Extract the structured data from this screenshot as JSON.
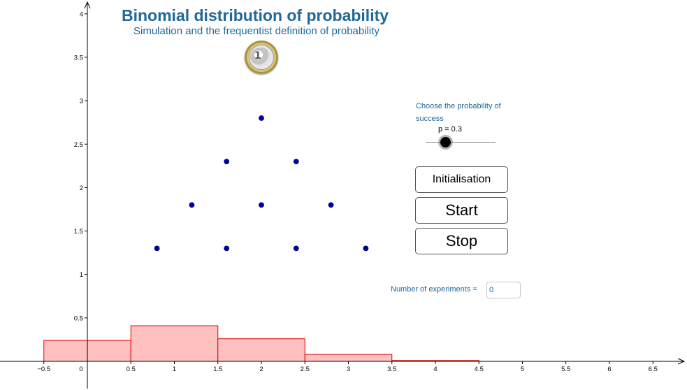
{
  "title": "Binomial distribution of probability",
  "subtitle": "Simulation and the frequentist definition of probability",
  "coin": {
    "icon": "euro-coin-icon",
    "label": "1"
  },
  "slider": {
    "label": "Choose the probability of success",
    "value_text": "p = 0.3",
    "value": 0.3,
    "min": 0,
    "max": 1
  },
  "buttons": {
    "init": "Initialisation",
    "start": "Start",
    "stop": "Stop"
  },
  "experiments": {
    "label": "Number of experiments =",
    "value": "0"
  },
  "colors": {
    "accent": "#1f6898",
    "histogram_fill": "#ffc0c0",
    "histogram_stroke": "#e00000",
    "dots": "#0000aa"
  },
  "chart_data": {
    "type": "bar",
    "x_range": [
      -0.5,
      6.5
    ],
    "y_range": [
      0,
      4
    ],
    "x_ticks": [
      "-0.5",
      "0",
      "0.5",
      "1",
      "1.5",
      "2",
      "2.5",
      "3",
      "3.5",
      "4",
      "4.5",
      "5",
      "5.5",
      "6",
      "6.5"
    ],
    "y_ticks": [
      "0.5",
      "1",
      "1.5",
      "2",
      "2.5",
      "3",
      "3.5",
      "4"
    ],
    "bars": [
      {
        "x_from": -0.5,
        "x_to": 0.5,
        "value": 0.24
      },
      {
        "x_from": 0.5,
        "x_to": 1.5,
        "value": 0.41
      },
      {
        "x_from": 1.5,
        "x_to": 2.5,
        "value": 0.26
      },
      {
        "x_from": 2.5,
        "x_to": 3.5,
        "value": 0.08
      },
      {
        "x_from": 3.5,
        "x_to": 4.5,
        "value": 0.01
      }
    ],
    "points": [
      {
        "x": 2.0,
        "y": 2.8
      },
      {
        "x": 1.6,
        "y": 2.3
      },
      {
        "x": 2.4,
        "y": 2.3
      },
      {
        "x": 1.2,
        "y": 1.8
      },
      {
        "x": 2.0,
        "y": 1.8
      },
      {
        "x": 2.8,
        "y": 1.8
      },
      {
        "x": 0.8,
        "y": 1.3
      },
      {
        "x": 1.6,
        "y": 1.3
      },
      {
        "x": 2.4,
        "y": 1.3
      },
      {
        "x": 3.2,
        "y": 1.3
      }
    ]
  }
}
